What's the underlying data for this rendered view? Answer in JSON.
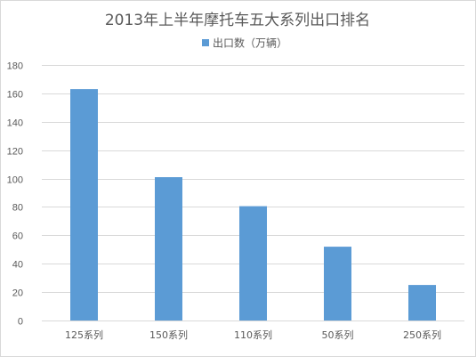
{
  "chart_data": {
    "type": "bar",
    "title": "2013年上半年摩托车五大系列出口排名",
    "xlabel": "",
    "ylabel": "",
    "categories": [
      "125系列",
      "150系列",
      "110系列",
      "50系列",
      "250系列"
    ],
    "series": [
      {
        "name": "出口数（万辆）",
        "values": [
          163,
          101,
          80.5,
          52,
          25
        ]
      }
    ],
    "ylim": [
      0,
      180
    ],
    "yticks": [
      0,
      20,
      40,
      60,
      80,
      100,
      120,
      140,
      160,
      180
    ],
    "grid": true,
    "legend_position": "top",
    "colors": {
      "bar": "#5b9bd5",
      "grid": "#d9d9d9",
      "text": "#595959"
    }
  }
}
